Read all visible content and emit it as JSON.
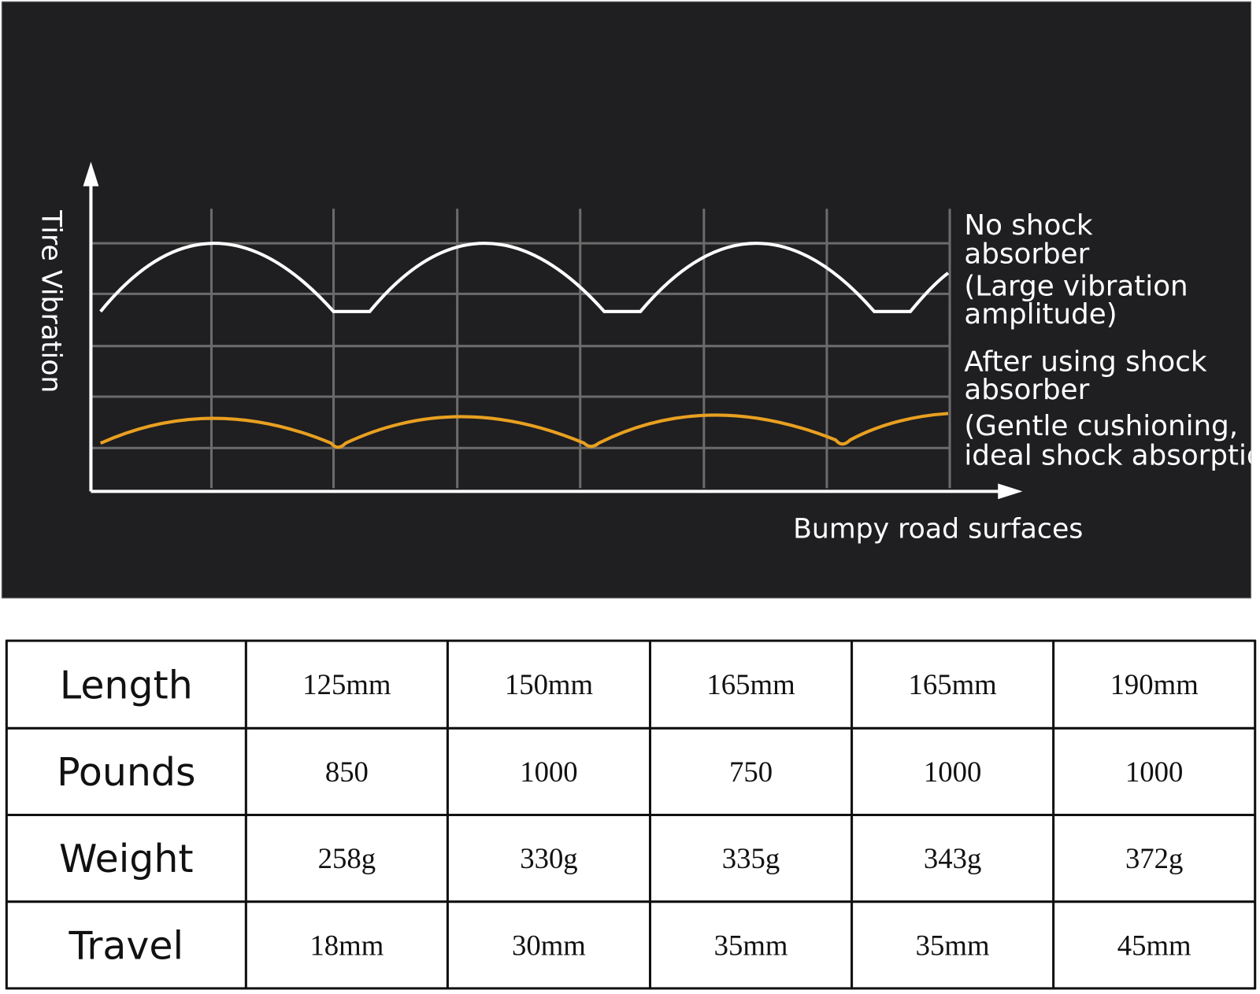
{
  "diagram": {
    "y_axis_label": "Tire Vibration",
    "x_axis_label": "Bumpy road surfaces",
    "annotations": [
      {
        "lines": [
          "No shock",
          "absorber",
          "(Large vibration",
          "amplitude)"
        ]
      },
      {
        "lines": [
          "After using shock",
          "absorber",
          "(Gentle cushioning,",
          "ideal shock absorption)"
        ]
      }
    ]
  },
  "table": {
    "rows": [
      [
        "Length",
        "125mm",
        "150mm",
        "165mm",
        "165mm",
        "190mm"
      ],
      [
        "Pounds",
        "850",
        "1000",
        "750",
        "1000",
        "1000"
      ],
      [
        "Weight",
        "258g",
        "330g",
        "335g",
        "343g",
        "372g"
      ],
      [
        "Travel",
        "18mm",
        "30mm",
        "35mm",
        "35mm",
        "45mm"
      ]
    ]
  }
}
